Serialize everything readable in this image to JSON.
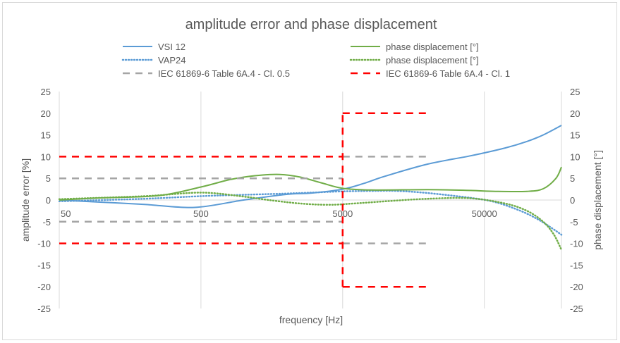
{
  "chart_data": {
    "type": "line",
    "title": "amplitude error and phase displacement",
    "xlabel": "frequency [Hz]",
    "ylabel": "amplitude error [%]",
    "y2label": "phase displacement [°]",
    "x_scale": "log",
    "xlim": [
      50,
      175000
    ],
    "x_ticks": [
      "50",
      "500",
      "5000",
      "50000"
    ],
    "ylim": [
      -25,
      25
    ],
    "y_ticks": [
      "25",
      "20",
      "15",
      "10",
      "5",
      "0",
      "-5",
      "-10",
      "-15",
      "-20",
      "-25"
    ],
    "y2lim": [
      -25,
      25
    ],
    "y2_ticks": [
      "25",
      "20",
      "15",
      "10",
      "5",
      "0",
      "-5",
      "-10",
      "-15",
      "-20",
      "-25"
    ],
    "grid": "vertical",
    "legend_position": "top",
    "legend": [
      "VSI 12",
      "VAP24",
      "phase displacement [°]",
      "phase displacement [°]",
      "IEC 61869-6 Table 6A.4 - Cl. 0.5",
      "IEC 61869-6 Table 6A.4 - Cl. 1"
    ],
    "series": [
      {
        "name": "VSI 12",
        "color": "#5b9bd5",
        "style": "solid",
        "axis": "left",
        "points": [
          [
            50,
            0
          ],
          [
            100,
            -0.5
          ],
          [
            200,
            -1
          ],
          [
            450,
            -1.7
          ],
          [
            1000,
            0
          ],
          [
            2000,
            1.3
          ],
          [
            3000,
            1.6
          ],
          [
            5000,
            2.5
          ],
          [
            7000,
            3.8
          ],
          [
            10000,
            5.5
          ],
          [
            20000,
            8.3
          ],
          [
            40000,
            10.2
          ],
          [
            70000,
            12
          ],
          [
            100000,
            13.5
          ],
          [
            130000,
            15
          ],
          [
            175000,
            17.2
          ]
        ]
      },
      {
        "name": "phase displacement [°]",
        "color": "#5b9bd5",
        "style": "dotted",
        "axis": "right",
        "points": [
          [
            50,
            -0.3
          ],
          [
            200,
            0.3
          ],
          [
            500,
            0.9
          ],
          [
            1000,
            1.2
          ],
          [
            2000,
            1.5
          ],
          [
            3000,
            1.7
          ],
          [
            5000,
            2
          ],
          [
            8000,
            2.1
          ],
          [
            12000,
            2.1
          ],
          [
            20000,
            1.6
          ],
          [
            40000,
            0.5
          ],
          [
            60000,
            -0.5
          ],
          [
            90000,
            -2.5
          ],
          [
            120000,
            -4.5
          ],
          [
            150000,
            -6.5
          ],
          [
            175000,
            -8
          ]
        ]
      },
      {
        "name": "VAP24",
        "color": "#70ad47",
        "style": "solid",
        "axis": "left",
        "points": [
          [
            50,
            0
          ],
          [
            100,
            0.5
          ],
          [
            250,
            1
          ],
          [
            500,
            3
          ],
          [
            800,
            4.7
          ],
          [
            1200,
            5.6
          ],
          [
            1800,
            5.9
          ],
          [
            2500,
            5.3
          ],
          [
            3500,
            4
          ],
          [
            5000,
            2.7
          ],
          [
            8000,
            2.3
          ],
          [
            20000,
            2.4
          ],
          [
            40000,
            2.2
          ],
          [
            60000,
            2
          ],
          [
            100000,
            2
          ],
          [
            130000,
            2.6
          ],
          [
            160000,
            5
          ],
          [
            175000,
            7.6
          ]
        ]
      },
      {
        "name": "phase displacement [°]",
        "color": "#70ad47",
        "style": "dotted",
        "axis": "right",
        "points": [
          [
            50,
            0.2
          ],
          [
            200,
            0.9
          ],
          [
            500,
            1.7
          ],
          [
            1000,
            0.8
          ],
          [
            1500,
            0
          ],
          [
            2500,
            -0.8
          ],
          [
            4000,
            -1.1
          ],
          [
            6000,
            -0.8
          ],
          [
            10000,
            -0.3
          ],
          [
            20000,
            0.3
          ],
          [
            40000,
            0.4
          ],
          [
            70000,
            -0.8
          ],
          [
            100000,
            -2.5
          ],
          [
            130000,
            -5
          ],
          [
            155000,
            -8
          ],
          [
            175000,
            -11.5
          ]
        ]
      },
      {
        "name": "IEC 61869-6 Table 6A.4 - Cl. 0.5",
        "color": "#a5a5a5",
        "style": "dashed",
        "axis": "left",
        "segments": [
          [
            [
              50,
              5
            ],
            [
              5000,
              5
            ]
          ],
          [
            [
              50,
              -5
            ],
            [
              5000,
              -5
            ]
          ],
          [
            [
              5000,
              10
            ],
            [
              20000,
              10
            ]
          ],
          [
            [
              5000,
              -10
            ],
            [
              20000,
              -10
            ]
          ]
        ]
      },
      {
        "name": "IEC 61869-6 Table 6A.4 - Cl. 1",
        "color": "#ff0000",
        "style": "dashed",
        "axis": "left",
        "segments": [
          [
            [
              50,
              10
            ],
            [
              5000,
              10
            ]
          ],
          [
            [
              50,
              -10
            ],
            [
              5000,
              -10
            ]
          ],
          [
            [
              5000,
              -20
            ],
            [
              5000,
              20
            ]
          ],
          [
            [
              5000,
              20
            ],
            [
              20000,
              20
            ]
          ],
          [
            [
              5000,
              -20
            ],
            [
              20000,
              -20
            ]
          ]
        ]
      }
    ]
  }
}
